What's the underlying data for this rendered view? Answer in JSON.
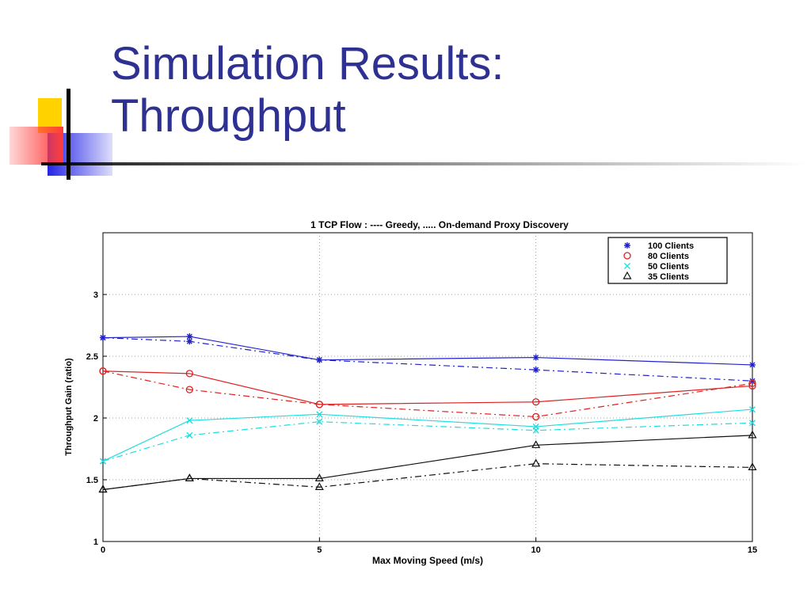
{
  "slide": {
    "title_line1": "Simulation Results:",
    "title_line2": "Throughput"
  },
  "colors": {
    "title": "#2e3192",
    "deco_yellow": "#ffd200",
    "deco_red": "#ff3b3b",
    "deco_blue": "#2424e6",
    "rule": "#000000"
  },
  "chart_data": {
    "type": "line",
    "title": "1 TCP Flow : ---- Greedy, ..... On-demand Proxy Discovery",
    "xlabel": "Max Moving Speed (m/s)",
    "ylabel": "Throughput Gain (ratio)",
    "xlim": [
      0,
      15
    ],
    "ylim": [
      1,
      3.5
    ],
    "xticks": [
      0,
      5,
      10,
      15
    ],
    "yticks": [
      1,
      1.5,
      2,
      2.5,
      3
    ],
    "grid": true,
    "legend_position": "top-right",
    "x": [
      0,
      2,
      5,
      10,
      15
    ],
    "series": [
      {
        "name": "100 Clients",
        "marker": "*",
        "color": "#2222cc",
        "style": "solid",
        "values": [
          2.65,
          2.66,
          2.47,
          2.49,
          2.43
        ]
      },
      {
        "name": "100 Clients",
        "marker": "*",
        "color": "#2222cc",
        "style": "dashed",
        "values": [
          2.65,
          2.62,
          2.47,
          2.39,
          2.3
        ]
      },
      {
        "name": "80 Clients",
        "marker": "o",
        "color": "#dd2222",
        "style": "solid",
        "values": [
          2.38,
          2.36,
          2.11,
          2.13,
          2.26
        ]
      },
      {
        "name": "80 Clients",
        "marker": "o",
        "color": "#dd2222",
        "style": "dashed",
        "values": [
          2.38,
          2.23,
          2.11,
          2.01,
          2.28
        ]
      },
      {
        "name": "50 Clients",
        "marker": "x",
        "color": "#22dddd",
        "style": "solid",
        "values": [
          1.65,
          1.98,
          2.03,
          1.93,
          2.07
        ]
      },
      {
        "name": "50 Clients",
        "marker": "x",
        "color": "#22dddd",
        "style": "dashed",
        "values": [
          1.65,
          1.86,
          1.97,
          1.9,
          1.96
        ]
      },
      {
        "name": "35 Clients",
        "marker": "^",
        "color": "#111111",
        "style": "solid",
        "values": [
          1.42,
          1.51,
          1.51,
          1.78,
          1.86
        ]
      },
      {
        "name": "35 Clients",
        "marker": "^",
        "color": "#111111",
        "style": "dashed",
        "values": [
          1.42,
          1.51,
          1.44,
          1.63,
          1.6
        ]
      }
    ],
    "legend": [
      {
        "label": "100 Clients",
        "marker": "*",
        "color": "#2222cc"
      },
      {
        "label": "80 Clients",
        "marker": "o",
        "color": "#dd2222"
      },
      {
        "label": "50 Clients",
        "marker": "x",
        "color": "#22dddd"
      },
      {
        "label": "35 Clients",
        "marker": "^",
        "color": "#111111"
      }
    ]
  }
}
